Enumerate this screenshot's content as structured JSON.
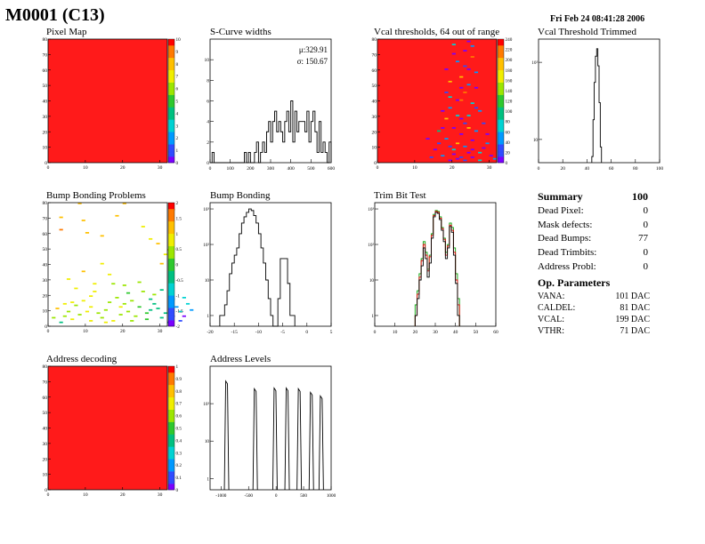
{
  "page": {
    "title": "M0001 (C13)",
    "date": "Fri Feb 24 08:41:28 2006"
  },
  "colors": {
    "frame": "#000000",
    "map_fill": "#ff1a1a",
    "green_series": "#00a000",
    "red_series": "#e00000",
    "palette": [
      "#7a00ff",
      "#2f4bff",
      "#0099ff",
      "#00d2d2",
      "#00c080",
      "#2ec82e",
      "#9be600",
      "#f0ee00",
      "#ffc000",
      "#ff7a00",
      "#ff0000"
    ]
  },
  "summary": {
    "title": "Summary",
    "total": "100",
    "rows": [
      {
        "label": "Dead Pixel:",
        "value": "0"
      },
      {
        "label": "Mask defects:",
        "value": "0"
      },
      {
        "label": "Dead Bumps:",
        "value": "77"
      },
      {
        "label": "Dead Trimbits:",
        "value": "0"
      },
      {
        "label": "Address Probl:",
        "value": "0"
      }
    ]
  },
  "op_parameters": {
    "title": "Op. Parameters",
    "rows": [
      {
        "label": "VANA:",
        "value": "101 DAC"
      },
      {
        "label": "CALDEL:",
        "value": "81 DAC"
      },
      {
        "label": "VCAL:",
        "value": "199 DAC"
      },
      {
        "label": "VTHR:",
        "value": "71 DAC"
      }
    ]
  },
  "chart_data": [
    {
      "id": "pixel-map",
      "type": "heatmap",
      "title": "Pixel Map",
      "xlim": [
        0,
        32
      ],
      "ylim": [
        0,
        80
      ],
      "xticks": [
        "0",
        "10",
        "20",
        "30"
      ],
      "yticks": [
        "0",
        "10",
        "20",
        "30",
        "40",
        "50",
        "60",
        "70",
        "80"
      ],
      "zlim": [
        0,
        10
      ],
      "zticks": [
        "0",
        "1",
        "2",
        "3",
        "4",
        "5",
        "6",
        "7",
        "8",
        "9",
        "10"
      ],
      "uniform_value": 10
    },
    {
      "id": "scurve-widths",
      "type": "bar",
      "title": "S-Curve widths",
      "xlim": [
        0,
        600
      ],
      "ylim": [
        0,
        12
      ],
      "xticks": [
        "0",
        "100",
        "200",
        "300",
        "400",
        "500",
        "600"
      ],
      "yticks": [
        "0",
        "2",
        "4",
        "6",
        "8",
        "10"
      ],
      "stats": [
        {
          "label": "μ:329.91"
        },
        {
          "label": "σ: 150.67"
        }
      ],
      "bin_start": 0,
      "bin_width": 10,
      "values": [
        0,
        1,
        0,
        0,
        0,
        0,
        0,
        0,
        0,
        0,
        0,
        0,
        0,
        0,
        0,
        0,
        0,
        1,
        0,
        1,
        0,
        0,
        1,
        2,
        0,
        1,
        2,
        1,
        3,
        4,
        2,
        4,
        5,
        3,
        4,
        3,
        2,
        4,
        5,
        3,
        6,
        2,
        5,
        3,
        4,
        4,
        4,
        3,
        5,
        2,
        4,
        5,
        3,
        1,
        4,
        1,
        2,
        1,
        0,
        2
      ]
    },
    {
      "id": "vcal-thresholds",
      "type": "heatmap",
      "title": "Vcal thresholds, 64 out of range",
      "xlim": [
        0,
        32
      ],
      "ylim": [
        0,
        80
      ],
      "xticks": [
        "0",
        "10",
        "20",
        "30"
      ],
      "yticks": [
        "0",
        "10",
        "20",
        "30",
        "40",
        "50",
        "60",
        "70",
        "80"
      ],
      "zlim": [
        0,
        240
      ],
      "zticks": [
        "0",
        "20",
        "40",
        "60",
        "80",
        "100",
        "120",
        "140",
        "160",
        "180",
        "200",
        "220",
        "240"
      ],
      "background_value": 240,
      "scatter": [
        [
          17,
          22,
          0
        ],
        [
          18,
          15,
          40
        ],
        [
          19,
          10,
          20
        ],
        [
          20,
          8,
          60
        ],
        [
          21,
          12,
          180
        ],
        [
          22,
          18,
          0
        ],
        [
          23,
          25,
          20
        ],
        [
          24,
          30,
          80
        ],
        [
          25,
          14,
          0
        ],
        [
          26,
          20,
          40
        ],
        [
          20,
          5,
          0
        ],
        [
          22,
          3,
          20
        ],
        [
          24,
          6,
          0
        ],
        [
          18,
          28,
          200
        ],
        [
          19,
          35,
          40
        ],
        [
          21,
          40,
          0
        ],
        [
          23,
          45,
          220
        ],
        [
          25,
          38,
          60
        ],
        [
          26,
          48,
          0
        ],
        [
          27,
          33,
          40
        ],
        [
          22,
          55,
          200
        ],
        [
          24,
          60,
          0
        ],
        [
          19,
          52,
          180
        ],
        [
          21,
          65,
          40
        ],
        [
          23,
          72,
          0
        ],
        [
          25,
          68,
          220
        ],
        [
          20,
          76,
          60
        ],
        [
          24,
          78,
          0
        ],
        [
          18,
          45,
          20
        ],
        [
          26,
          58,
          40
        ],
        [
          16,
          20,
          100
        ],
        [
          17,
          33,
          0
        ],
        [
          28,
          25,
          20
        ],
        [
          29,
          12,
          40
        ],
        [
          15,
          8,
          0
        ],
        [
          27,
          6,
          60
        ],
        [
          30,
          4,
          0
        ],
        [
          14,
          3,
          20
        ],
        [
          31,
          2,
          40
        ],
        [
          13,
          15,
          0
        ],
        [
          22,
          28,
          0
        ],
        [
          23,
          10,
          40
        ],
        [
          24,
          22,
          200
        ],
        [
          25,
          8,
          0
        ],
        [
          21,
          30,
          60
        ],
        [
          20,
          22,
          0
        ],
        [
          26,
          35,
          20
        ],
        [
          19,
          42,
          60
        ],
        [
          22,
          48,
          0
        ],
        [
          24,
          50,
          40
        ],
        [
          18,
          60,
          0
        ],
        [
          23,
          62,
          20
        ],
        [
          20,
          70,
          0
        ],
        [
          25,
          75,
          40
        ],
        [
          21,
          2,
          0
        ],
        [
          23,
          1,
          20
        ],
        [
          25,
          3,
          0
        ],
        [
          27,
          1,
          60
        ],
        [
          19,
          1,
          0
        ],
        [
          17,
          4,
          40
        ],
        [
          28,
          9,
          0
        ],
        [
          16,
          12,
          20
        ],
        [
          29,
          18,
          0
        ],
        [
          22,
          40,
          220
        ]
      ]
    },
    {
      "id": "vcal-threshold-trimmed",
      "type": "bar",
      "title": "Vcal Threshold Trimmed",
      "xlim": [
        0,
        100
      ],
      "ylog": true,
      "ymin": 5,
      "ymax": 200,
      "xticks": [
        "0",
        "20",
        "40",
        "60",
        "80",
        "100"
      ],
      "ydecades": [
        {
          "value": 10,
          "label": "10"
        },
        {
          "value": 100,
          "label": "10²"
        }
      ],
      "bin_start": 44,
      "bin_width": 1,
      "values": [
        6,
        18,
        55,
        120,
        150,
        90,
        30,
        8
      ]
    },
    {
      "id": "bump-bonding-problems",
      "type": "heatmap",
      "title": "Bump Bonding Problems",
      "xlim": [
        0,
        32
      ],
      "ylim": [
        0,
        80
      ],
      "xticks": [
        "0",
        "10",
        "20",
        "30"
      ],
      "yticks": [
        "0",
        "10",
        "20",
        "30",
        "40",
        "50",
        "60",
        "70",
        "80"
      ],
      "zlim": [
        -2,
        2
      ],
      "zticks": [
        "-2",
        "-1.5",
        "-1",
        "-0.5",
        "0",
        "0.5",
        "1",
        "1.5",
        "2"
      ],
      "scatter": [
        [
          3,
          70,
          1.2
        ],
        [
          9,
          68,
          1
        ],
        [
          3,
          62,
          1.5
        ],
        [
          18,
          71,
          1.3
        ],
        [
          8,
          79,
          1
        ],
        [
          20,
          79,
          1.1
        ],
        [
          25,
          64,
          0.8
        ],
        [
          33,
          75,
          1.5
        ],
        [
          10,
          60,
          1.2
        ],
        [
          14,
          58,
          1
        ],
        [
          27,
          56,
          0.9
        ],
        [
          29,
          53,
          1.2
        ],
        [
          32,
          49,
          0.8
        ],
        [
          31,
          46,
          0.6
        ],
        [
          30,
          40,
          1
        ],
        [
          14,
          40,
          0.7
        ],
        [
          9,
          35,
          1
        ],
        [
          5,
          30,
          0.6
        ],
        [
          17,
          27,
          0.4
        ],
        [
          20,
          26,
          0.3
        ],
        [
          25,
          22,
          0.5
        ],
        [
          28,
          20,
          0.2
        ],
        [
          11,
          19,
          0.8
        ],
        [
          6,
          15,
          0.7
        ],
        [
          4,
          14,
          0.9
        ],
        [
          7,
          13,
          0.5
        ],
        [
          11,
          12,
          0.6
        ],
        [
          15,
          10,
          0.3
        ],
        [
          21,
          9,
          0.2
        ],
        [
          27,
          10,
          -0.3
        ],
        [
          31,
          8,
          -0.5
        ],
        [
          35,
          9,
          -0.8
        ],
        [
          37,
          14,
          -1
        ],
        [
          36,
          18,
          -0.7
        ],
        [
          33,
          6,
          -1.5
        ],
        [
          30,
          5,
          -0.5
        ],
        [
          26,
          4,
          0.1
        ],
        [
          22,
          3,
          0.3
        ],
        [
          17,
          3,
          0.6
        ],
        [
          11,
          3,
          0.8
        ],
        [
          6,
          4,
          0.7
        ],
        [
          4,
          6,
          0.4
        ],
        [
          3,
          2,
          -0.3
        ],
        [
          8,
          7,
          0.5
        ],
        [
          13,
          8,
          0.4
        ],
        [
          19,
          7,
          0.2
        ],
        [
          24,
          12,
          -0.2
        ],
        [
          28,
          14,
          -0.4
        ],
        [
          33,
          17,
          -0.9
        ],
        [
          35,
          3,
          -1.6
        ],
        [
          10,
          9,
          0.9
        ],
        [
          16,
          15,
          0.5
        ],
        [
          22,
          16,
          0.3
        ],
        [
          29,
          11,
          -0.6
        ],
        [
          34,
          12,
          -1.2
        ],
        [
          2,
          11,
          1
        ],
        [
          12,
          22,
          0.7
        ],
        [
          18,
          18,
          0.4
        ],
        [
          24,
          28,
          0.2
        ],
        [
          7,
          24,
          0.9
        ],
        [
          19,
          12,
          0.6
        ],
        [
          26,
          8,
          -0.1
        ],
        [
          32,
          2,
          -1.3
        ],
        [
          14,
          5,
          0.4
        ],
        [
          9,
          16,
          0.8
        ],
        [
          5,
          9,
          0.5
        ],
        [
          23,
          6,
          0.2
        ],
        [
          36,
          6,
          -1.8
        ],
        [
          20,
          14,
          0.5
        ],
        [
          27,
          17,
          -0.3
        ],
        [
          15,
          2,
          0.7
        ],
        [
          12,
          27,
          0.6
        ],
        [
          21,
          21,
          0.1
        ],
        [
          30,
          23,
          -0.5
        ],
        [
          1,
          5,
          0.3
        ],
        [
          38,
          10,
          -1.1
        ],
        [
          16,
          33,
          0.8
        ]
      ]
    },
    {
      "id": "bump-bonding",
      "type": "bar",
      "title": "Bump Bonding",
      "xlim": [
        -20,
        5
      ],
      "ylog": true,
      "ymin": 0.5,
      "ymax": 1500,
      "xticks": [
        "-20",
        "-15",
        "-10",
        "-5",
        "0",
        "5"
      ],
      "ydecades": [
        {
          "value": 1,
          "label": "1"
        },
        {
          "value": 10,
          "label": "10"
        },
        {
          "value": 100,
          "label": "10²"
        },
        {
          "value": 1000,
          "label": "10³"
        }
      ],
      "bin_start": -18,
      "bin_width": 0.5,
      "values": [
        1,
        1,
        2,
        5,
        15,
        30,
        50,
        80,
        200,
        400,
        600,
        800,
        1000,
        900,
        650,
        400,
        200,
        80,
        30,
        10,
        3,
        1,
        0,
        0,
        3,
        40,
        40,
        40,
        8,
        1,
        1
      ]
    },
    {
      "id": "trim-bit-test",
      "type": "bar",
      "title": "Trim Bit Test",
      "xlim": [
        0,
        60
      ],
      "ylog": true,
      "ymin": 0.5,
      "ymax": 1500,
      "xticks": [
        "0",
        "10",
        "20",
        "30",
        "40",
        "50",
        "60"
      ],
      "ydecades": [
        {
          "value": 1,
          "label": "1"
        },
        {
          "value": 10,
          "label": "10"
        },
        {
          "value": 100,
          "label": "10²"
        },
        {
          "value": 1000,
          "label": "10³"
        }
      ],
      "series": [
        {
          "color_key": "green_series",
          "bin_start": 20,
          "bin_width": 1,
          "values": [
            2,
            5,
            15,
            40,
            120,
            60,
            20,
            50,
            200,
            700,
            900,
            850,
            600,
            300,
            150,
            60,
            100,
            400,
            300,
            80,
            15,
            3
          ]
        },
        {
          "color_key": "red_series",
          "bin_start": 20,
          "bin_width": 1,
          "values": [
            1,
            4,
            12,
            35,
            100,
            50,
            18,
            45,
            180,
            650,
            850,
            800,
            550,
            280,
            140,
            50,
            90,
            350,
            250,
            60,
            10,
            2
          ]
        },
        {
          "color_key": "frame",
          "bin_start": 20,
          "bin_width": 1,
          "values": [
            1,
            3,
            10,
            25,
            80,
            40,
            12,
            30,
            150,
            600,
            800,
            750,
            500,
            250,
            120,
            40,
            80,
            320,
            220,
            50,
            8,
            1
          ]
        }
      ]
    },
    {
      "id": "address-decoding",
      "type": "heatmap",
      "title": "Address decoding",
      "xlim": [
        0,
        32
      ],
      "ylim": [
        0,
        80
      ],
      "xticks": [
        "0",
        "10",
        "20",
        "30"
      ],
      "yticks": [
        "0",
        "10",
        "20",
        "30",
        "40",
        "50",
        "60",
        "70",
        "80"
      ],
      "zlim": [
        0,
        1
      ],
      "zticks": [
        "0",
        "0.1",
        "0.2",
        "0.3",
        "0.4",
        "0.5",
        "0.6",
        "0.7",
        "0.8",
        "0.9",
        "1"
      ],
      "uniform_value": 1
    },
    {
      "id": "address-levels",
      "type": "line",
      "title": "Address Levels",
      "xlim": [
        -1200,
        1000
      ],
      "ylog": true,
      "ymin": 0.5,
      "ymax": 1000,
      "xticks": [
        "-1000",
        "-500",
        "0",
        "500",
        "1000"
      ],
      "xtick_values": [
        -1000,
        -500,
        0,
        500,
        1000
      ],
      "ydecades": [
        {
          "value": 1,
          "label": "1"
        },
        {
          "value": 10,
          "label": "10"
        },
        {
          "value": 100,
          "label": "10²"
        }
      ],
      "peaks": [
        {
          "x": -900,
          "height": 400
        },
        {
          "x": -380,
          "height": 250
        },
        {
          "x": -20,
          "height": 260
        },
        {
          "x": 200,
          "height": 260
        },
        {
          "x": 420,
          "height": 250
        },
        {
          "x": 640,
          "height": 200
        },
        {
          "x": 820,
          "height": 160
        }
      ]
    }
  ]
}
